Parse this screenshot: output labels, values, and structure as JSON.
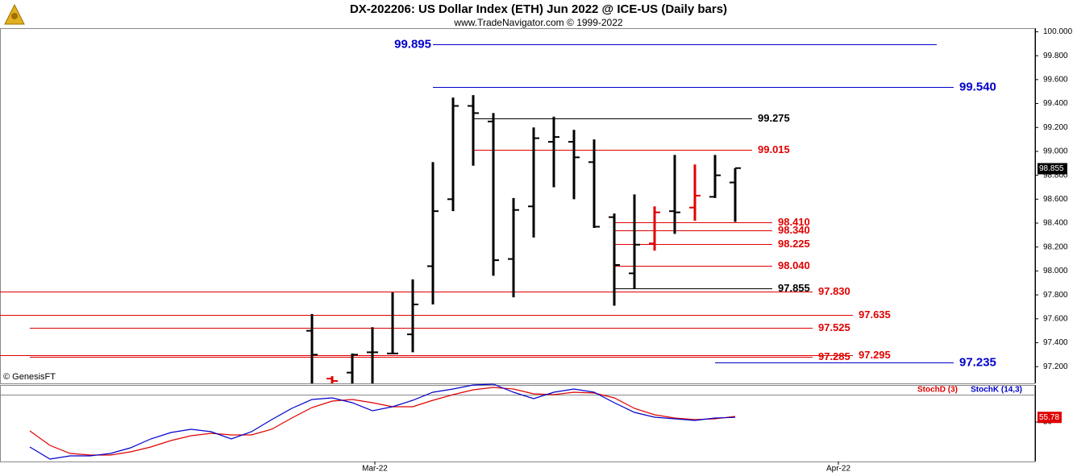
{
  "chart_data": [
    {
      "type": "ohlc",
      "title": "DX-202206:  US Dollar Index (ETH) Jun 2022 @ ICE-US  (Daily bars)",
      "subtitle": "www.TradeNavigator.com © 1999-2022",
      "watermark": "© GenesisFT",
      "categories": [
        null,
        null,
        null,
        null,
        null,
        null,
        null,
        null,
        null,
        null,
        null,
        null,
        null,
        null,
        null,
        null,
        null,
        null,
        null,
        null,
        null,
        null
      ],
      "open": [
        97.5,
        97.1,
        97.15,
        97.32,
        97.31,
        97.47,
        98.04,
        98.6,
        99.38,
        99.25,
        98.1,
        98.54,
        99.08,
        99.08,
        98.91,
        98.45,
        97.98,
        98.23,
        98.5,
        98.53,
        98.62,
        98.74
      ],
      "high": [
        97.64,
        97.12,
        97.31,
        97.53,
        97.82,
        97.93,
        98.91,
        99.45,
        99.47,
        99.32,
        98.61,
        99.2,
        99.29,
        99.18,
        99.1,
        98.48,
        98.64,
        98.54,
        98.97,
        98.89,
        98.97,
        98.86
      ],
      "low": [
        97.06,
        97.06,
        97.06,
        97.06,
        97.31,
        97.32,
        97.72,
        98.5,
        98.88,
        97.96,
        97.78,
        98.28,
        98.7,
        98.6,
        98.36,
        97.71,
        97.85,
        98.17,
        98.31,
        98.42,
        98.61,
        98.41
      ],
      "close": [
        97.3,
        97.08,
        97.3,
        97.32,
        97.31,
        97.72,
        98.5,
        99.38,
        99.32,
        98.09,
        98.51,
        99.11,
        99.12,
        98.95,
        98.37,
        98.05,
        98.22,
        98.49,
        98.49,
        98.63,
        98.8,
        98.86
      ],
      "colors": [
        "#000",
        "#e00000",
        "#000",
        "#000",
        "#000",
        "#000",
        "#000",
        "#000",
        "#000",
        "#000",
        "#000",
        "#000",
        "#000",
        "#000",
        "#000",
        "#000",
        "#000",
        "#e00000",
        "#000",
        "#e00000",
        "#000",
        "#000"
      ],
      "xlim": [
        -15.48,
        35.84
      ],
      "ylim": [
        97.06,
        100.03
      ],
      "yticks": [
        {
          "value": 97.2,
          "label": "97.200"
        },
        {
          "value": 97.4,
          "label": "97.400"
        },
        {
          "value": 97.6,
          "label": "97.600"
        },
        {
          "value": 97.8,
          "label": "97.800"
        },
        {
          "value": 98.0,
          "label": "98.000"
        },
        {
          "value": 98.2,
          "label": "98.200"
        },
        {
          "value": 98.4,
          "label": "98.400"
        },
        {
          "value": 98.6,
          "label": "98.600"
        },
        {
          "value": 98.8,
          "label": "98.800"
        },
        {
          "value": 99.0,
          "label": "99.000"
        },
        {
          "value": 99.2,
          "label": "99.200"
        },
        {
          "value": 99.4,
          "label": "99.400"
        },
        {
          "value": 99.6,
          "label": "99.600"
        },
        {
          "value": 99.8,
          "label": "99.800"
        },
        {
          "value": 100.0,
          "label": "100.000"
        }
      ],
      "last_price": {
        "value": 98.855,
        "label": "98.855"
      },
      "levels": [
        {
          "value": 99.895,
          "label": "99.895",
          "color": "#0000cc",
          "from": 6,
          "to": 31,
          "label_side": "left"
        },
        {
          "value": 99.54,
          "label": "99.540",
          "color": "#0000cc",
          "from": 6,
          "to": 31.84,
          "label_side": "right"
        },
        {
          "value": 99.275,
          "label": "99.275",
          "color": "#000",
          "from": 8,
          "to": 21.84,
          "label_side": "right"
        },
        {
          "value": 99.015,
          "label": "99.015",
          "color": "#e00000",
          "from": 8,
          "to": 21.84,
          "label_side": "right"
        },
        {
          "value": 98.41,
          "label": "98.410",
          "color": "#e00000",
          "from": 15,
          "to": 22.84,
          "label_side": "right"
        },
        {
          "value": 98.34,
          "label": "98.340",
          "color": "#e00000",
          "from": 15,
          "to": 22.84,
          "label_side": "right"
        },
        {
          "value": 98.225,
          "label": "98.225",
          "color": "#e00000",
          "from": 15,
          "to": 22.84,
          "label_side": "right"
        },
        {
          "value": 98.04,
          "label": "98.040",
          "color": "#e00000",
          "from": 15,
          "to": 22.84,
          "label_side": "right"
        },
        {
          "value": 97.855,
          "label": "97.855",
          "color": "#000",
          "from": 15,
          "to": 22.84,
          "label_side": "right"
        },
        {
          "value": 97.83,
          "label": "97.830",
          "color": "#e00000",
          "from": -15.48,
          "to": 24.84,
          "label_side": "right"
        },
        {
          "value": 97.635,
          "label": "97.635",
          "color": "#e00000",
          "from": -15.48,
          "to": 26.84,
          "label_side": "right"
        },
        {
          "value": 97.525,
          "label": "97.525",
          "color": "#e00000",
          "from": -14,
          "to": 24.84,
          "label_side": "right"
        },
        {
          "value": 97.285,
          "label": "97.285",
          "color": "#e00000",
          "from": -14,
          "to": 24.84,
          "label_side": "right"
        },
        {
          "value": 97.295,
          "label": "97.295",
          "color": "#e00000",
          "from": -15.48,
          "to": 26.84,
          "label_side": "right"
        },
        {
          "value": 97.235,
          "label": "97.235",
          "color": "#0000cc",
          "from": 20,
          "to": 31.84,
          "label_side": "right"
        }
      ]
    },
    {
      "type": "line",
      "categories": [
        null,
        null,
        null,
        null,
        null,
        null,
        null,
        null,
        null,
        null,
        null,
        null,
        null,
        null,
        null,
        null,
        null,
        null,
        null,
        null,
        null,
        null,
        null,
        null,
        null,
        null,
        null,
        null,
        null,
        null,
        null,
        null,
        null,
        null,
        null,
        null
      ],
      "series": [
        {
          "name": "StochD (3)",
          "color": "#e00000",
          "values": [
            39,
            21,
            11,
            9,
            9,
            13,
            19,
            27,
            33,
            36,
            34,
            34,
            41,
            55,
            68,
            76,
            78,
            74,
            69,
            69,
            77,
            84,
            90,
            93,
            91,
            85,
            84,
            87,
            86,
            80,
            67,
            59,
            55,
            53,
            54,
            57
          ]
        },
        {
          "name": "StochK (14,3)",
          "color": "#0000cc",
          "values": [
            19,
            4,
            8,
            8,
            11,
            18,
            29,
            37,
            41,
            38,
            29,
            38,
            53,
            67,
            78,
            80,
            74,
            64,
            69,
            77,
            87,
            91,
            96,
            97,
            87,
            79,
            87,
            91,
            87,
            74,
            62,
            56,
            54,
            52,
            55,
            55.78
          ]
        }
      ],
      "last_value": {
        "value": 55.78,
        "label": "55.78"
      },
      "xlim": [
        -1.48,
        49.84
      ],
      "ylim": [
        1,
        96
      ],
      "yticks": [
        50
      ],
      "xticks": [
        {
          "value": 17.12,
          "label": "Mar-22"
        },
        {
          "value": 40.12,
          "label": "Apr-22"
        }
      ]
    }
  ]
}
